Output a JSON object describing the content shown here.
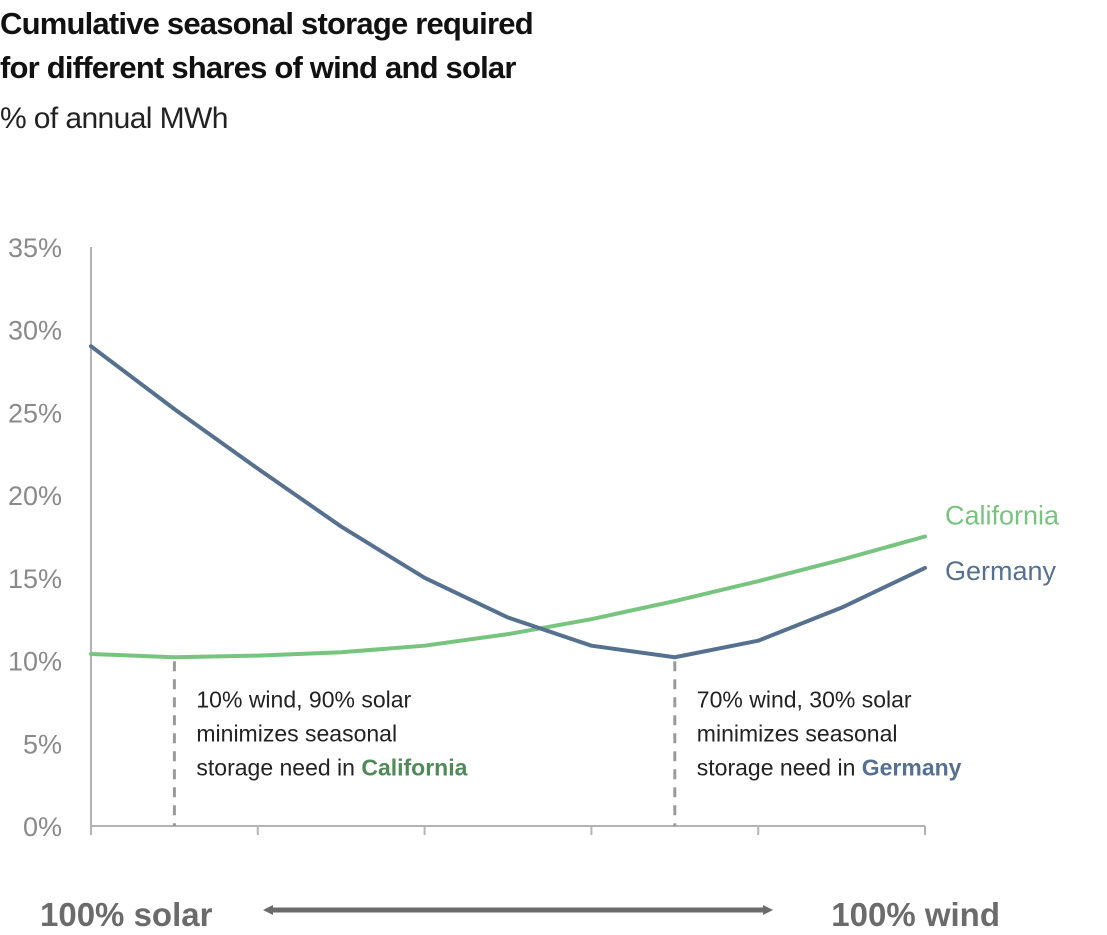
{
  "chart_data": {
    "type": "line",
    "title_lines": [
      "Cumulative seasonal storage required",
      "for different shares of wind and solar"
    ],
    "subtitle": "% of annual MWh",
    "ylim": [
      0,
      35
    ],
    "yticks": [
      "0%",
      "5%",
      "10%",
      "15%",
      "20%",
      "25%",
      "30%",
      "35%"
    ],
    "xlim": [
      0,
      100
    ],
    "x": [
      0,
      10,
      20,
      30,
      40,
      50,
      60,
      70,
      80,
      90,
      100
    ],
    "grid": false,
    "series": [
      {
        "name": "California",
        "color": "#77c47f",
        "values": [
          10.4,
          10.2,
          10.3,
          10.5,
          10.9,
          11.6,
          12.5,
          13.6,
          14.8,
          16.1,
          17.5
        ]
      },
      {
        "name": "Germany",
        "color": "#56708f",
        "values": [
          29.0,
          25.2,
          21.6,
          18.1,
          15.0,
          12.6,
          10.9,
          10.2,
          11.2,
          13.2,
          15.6
        ]
      }
    ],
    "annotations": [
      {
        "x": 10,
        "lines": [
          "10% wind, 90% solar",
          "minimizes seasonal",
          "storage need in "
        ],
        "highlight": "California",
        "highlight_color": "#4f8a58"
      },
      {
        "x": 70,
        "lines": [
          "70% wind, 30% solar",
          "minimizes seasonal",
          "storage need in "
        ],
        "highlight": "Germany",
        "highlight_color": "#56708f"
      }
    ],
    "axis_left_label": "100% solar",
    "axis_right_label": "100% wind",
    "arrow": "double-headed"
  }
}
